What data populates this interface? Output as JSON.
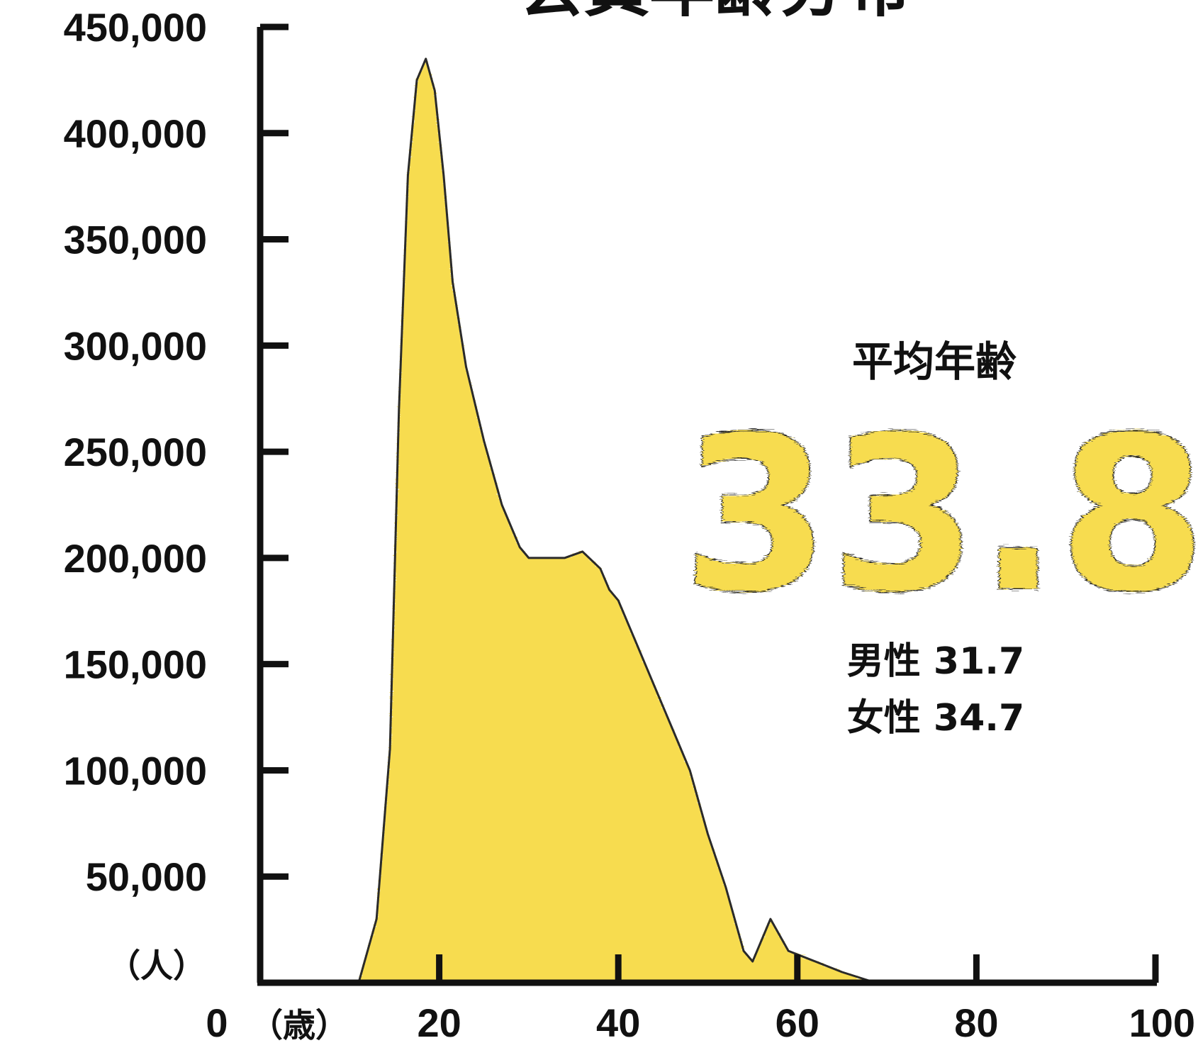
{
  "title": "会員年齢分布",
  "chart_data": {
    "type": "area",
    "ylabel": "（人）",
    "xlabel": "（歳）",
    "xlim": [
      0,
      100
    ],
    "ylim": [
      0,
      450000
    ],
    "x_ticks": [
      0,
      20,
      40,
      60,
      80,
      100
    ],
    "x_tick_labels": [
      "0",
      "20",
      "40",
      "60",
      "80",
      "100"
    ],
    "y_ticks": [
      50000,
      100000,
      150000,
      200000,
      250000,
      300000,
      350000,
      400000,
      450000
    ],
    "y_tick_labels": [
      "50,000",
      "100,000",
      "150,000",
      "200,000",
      "250,000",
      "300,000",
      "350,000",
      "400,000",
      "450,000"
    ],
    "x": [
      11,
      13,
      14.5,
      15.5,
      16.5,
      17.5,
      18.5,
      19.5,
      20.5,
      21.5,
      23,
      25,
      27,
      29,
      30,
      32,
      34,
      36,
      38,
      39,
      40,
      42,
      44,
      46,
      48,
      50,
      52,
      54,
      55,
      56,
      57,
      59,
      62,
      65,
      68,
      72
    ],
    "values": [
      0,
      30000,
      110000,
      270000,
      380000,
      425000,
      435000,
      420000,
      380000,
      330000,
      290000,
      255000,
      225000,
      205000,
      200000,
      200000,
      200000,
      203000,
      195000,
      185000,
      180000,
      160000,
      140000,
      120000,
      100000,
      70000,
      45000,
      15000,
      10000,
      20000,
      30000,
      15000,
      10000,
      5000,
      1000,
      0
    ],
    "fill_color": "#f7dc4f",
    "line_color": "#2a2a2a",
    "grid": false
  },
  "average": {
    "label": "平均年齢",
    "value": "33.8",
    "male": "男性 31.7",
    "female": "女性 34.7",
    "number_color": "#f7dc4f"
  }
}
